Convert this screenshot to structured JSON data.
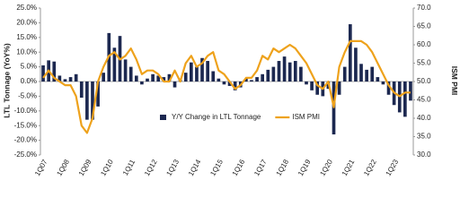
{
  "chart_data": {
    "type": "bar-line",
    "y_label": "LTL Tonnage (YoY%)",
    "y2_label": "ISM PMI",
    "categories": [
      "1Q07",
      null,
      null,
      null,
      "1Q08",
      null,
      null,
      null,
      "1Q09",
      null,
      null,
      null,
      "1Q10",
      null,
      null,
      null,
      "1Q11",
      null,
      null,
      null,
      "1Q12",
      null,
      null,
      null,
      "1Q13",
      null,
      null,
      null,
      "1Q14",
      null,
      null,
      null,
      "1Q15",
      null,
      null,
      null,
      "1Q16",
      null,
      null,
      null,
      "1Q17",
      null,
      null,
      null,
      "1Q18",
      null,
      null,
      null,
      "1Q19",
      null,
      null,
      null,
      "1Q20",
      null,
      null,
      null,
      "1Q21",
      null,
      null,
      null,
      "1Q22",
      null,
      null,
      null,
      "1Q23",
      null,
      null,
      null
    ],
    "series": [
      {
        "name": "Y/Y Change in LTL Tonnage",
        "type": "bar",
        "color": "#1c2850",
        "values": [
          5.5,
          7.2,
          6.8,
          2.0,
          0.8,
          1.5,
          2.5,
          -5.5,
          -13,
          -13,
          -8.5,
          3,
          16.5,
          11.5,
          15.5,
          7.5,
          5,
          2,
          -1,
          1,
          2.5,
          2,
          1.5,
          2.5,
          -2,
          1,
          3,
          6.5,
          5,
          8,
          7,
          3.5,
          1,
          -1,
          -1.5,
          -3,
          -2,
          1,
          0.5,
          1.5,
          2.5,
          4,
          5,
          7,
          8.5,
          6.5,
          7,
          5,
          -1,
          -3,
          -4.5,
          -5,
          -2.5,
          -18,
          -4.5,
          5,
          19.5,
          11.5,
          6,
          4,
          5,
          1.5,
          -1,
          -4.5,
          -8,
          -10.5,
          -12,
          -6.5
        ]
      },
      {
        "name": "ISM PMI",
        "type": "line",
        "axis": "y2",
        "color": "#eea21c",
        "values": [
          51,
          53,
          51,
          50,
          49,
          49,
          46,
          38,
          36,
          40,
          50,
          54,
          57,
          58,
          56,
          57,
          59,
          56,
          52,
          53,
          53,
          52,
          50,
          50,
          53,
          50,
          55,
          57,
          54,
          55,
          57,
          58,
          53,
          52,
          50,
          48,
          49,
          51,
          51,
          53,
          57,
          56,
          59,
          58,
          59,
          60,
          59,
          57,
          55,
          52,
          49,
          48,
          50,
          43,
          54,
          58,
          61,
          61,
          61,
          60,
          58,
          55,
          52,
          49,
          47,
          46,
          47,
          47
        ]
      }
    ],
    "ylim": [
      -25,
      25
    ],
    "yticks": [
      {
        "value": 25,
        "label": "25.0%"
      },
      {
        "value": 20,
        "label": "20.0%"
      },
      {
        "value": 15,
        "label": "15.0%"
      },
      {
        "value": 10,
        "label": "10.0%"
      },
      {
        "value": 5,
        "label": "5.0%"
      },
      {
        "value": 0,
        "label": "0.0%"
      },
      {
        "value": -5,
        "label": "-5.0%"
      },
      {
        "value": -10,
        "label": "-10.0%"
      },
      {
        "value": -15,
        "label": "-15.0%"
      },
      {
        "value": -20,
        "label": "-20.0%"
      },
      {
        "value": -25,
        "label": "-25.0%"
      }
    ],
    "y2lim": [
      30,
      70
    ],
    "y2ticks": [
      {
        "value": 70,
        "label": "70.0"
      },
      {
        "value": 65,
        "label": "65.0"
      },
      {
        "value": 60,
        "label": "60.0"
      },
      {
        "value": 55,
        "label": "55.0"
      },
      {
        "value": 50,
        "label": "50.0"
      },
      {
        "value": 45,
        "label": "45.0"
      },
      {
        "value": 40,
        "label": "40.0"
      },
      {
        "value": 35,
        "label": "35.0"
      },
      {
        "value": 30,
        "label": "30.0"
      }
    ],
    "legend": "bottom"
  }
}
